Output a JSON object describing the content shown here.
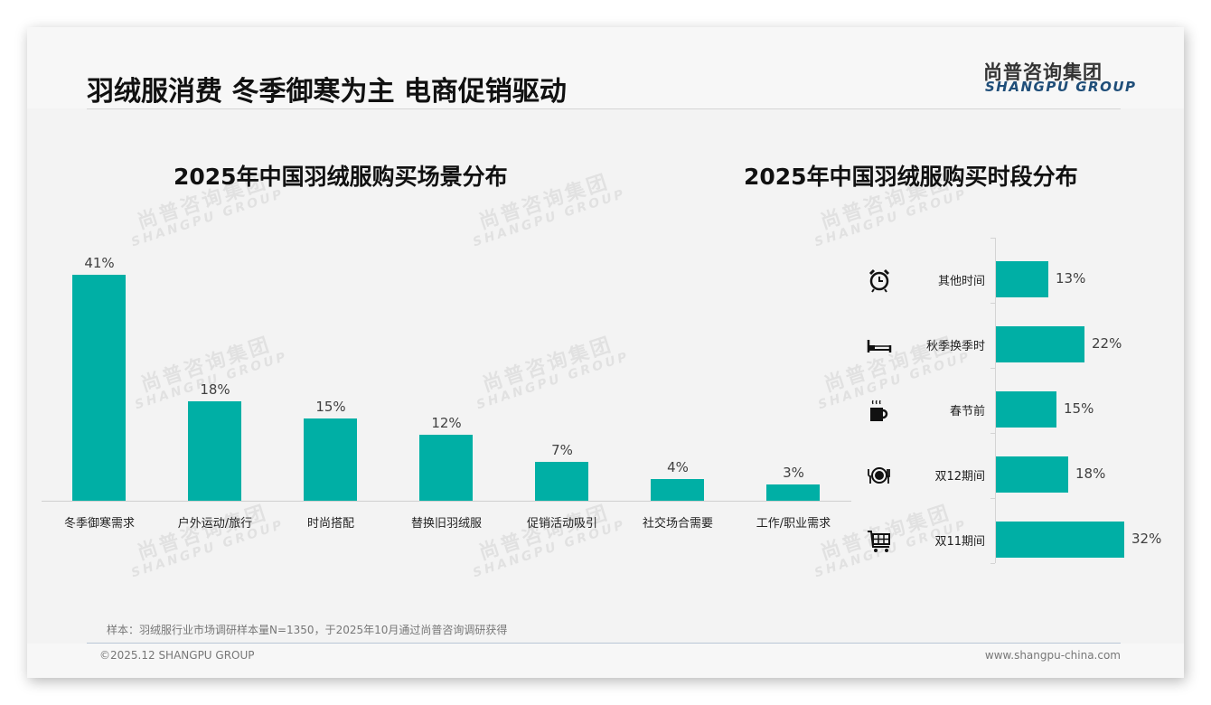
{
  "header": {
    "title": "羽绒服消费 冬季御寒为主 电商促销驱动",
    "logo_cn": "尚普咨询集团",
    "logo_en": "SHANGPU GROUP"
  },
  "watermark": {
    "cn": "尚普咨询集团",
    "en": "SHANGPU GROUP"
  },
  "colors": {
    "bar": "#00afa5",
    "logo_en": "#1f4e79",
    "text": "#222222"
  },
  "chart_data": [
    {
      "type": "bar",
      "title": "2025年中国羽绒服购买场景分布",
      "categories": [
        "冬季御寒需求",
        "户外运动/旅行",
        "时尚搭配",
        "替换旧羽绒服",
        "促销活动吸引",
        "社交场合需要",
        "工作/职业需求"
      ],
      "values": [
        41,
        18,
        15,
        12,
        7,
        4,
        3
      ],
      "value_labels": [
        "41%",
        "18%",
        "15%",
        "12%",
        "7%",
        "4%",
        "3%"
      ],
      "xlabel": "",
      "ylabel": "",
      "unit": "%",
      "ylim": [
        0,
        45
      ],
      "grid": false,
      "legend": false
    },
    {
      "type": "bar",
      "orientation": "horizontal",
      "title": "2025年中国羽绒服购买时段分布",
      "categories": [
        "其他时间",
        "秋季换季时",
        "春节前",
        "双12期间",
        "双11期间"
      ],
      "values": [
        13,
        22,
        15,
        18,
        32
      ],
      "value_labels": [
        "13%",
        "22%",
        "15%",
        "18%",
        "32%"
      ],
      "icons": [
        "alarm-clock-icon",
        "bed-icon",
        "coffee-mug-icon",
        "plate-cutlery-icon",
        "shopping-cart-icon"
      ],
      "xlabel": "",
      "ylabel": "",
      "unit": "%",
      "xlim": [
        0,
        35
      ],
      "grid": false,
      "legend": false
    }
  ],
  "footer": {
    "note": "样本：羽绒服行业市场调研样本量N=1350，于2025年10月通过尚普咨询调研获得",
    "copyright": "©2025.12 SHANGPU GROUP",
    "website": "www.shangpu-china.com"
  }
}
